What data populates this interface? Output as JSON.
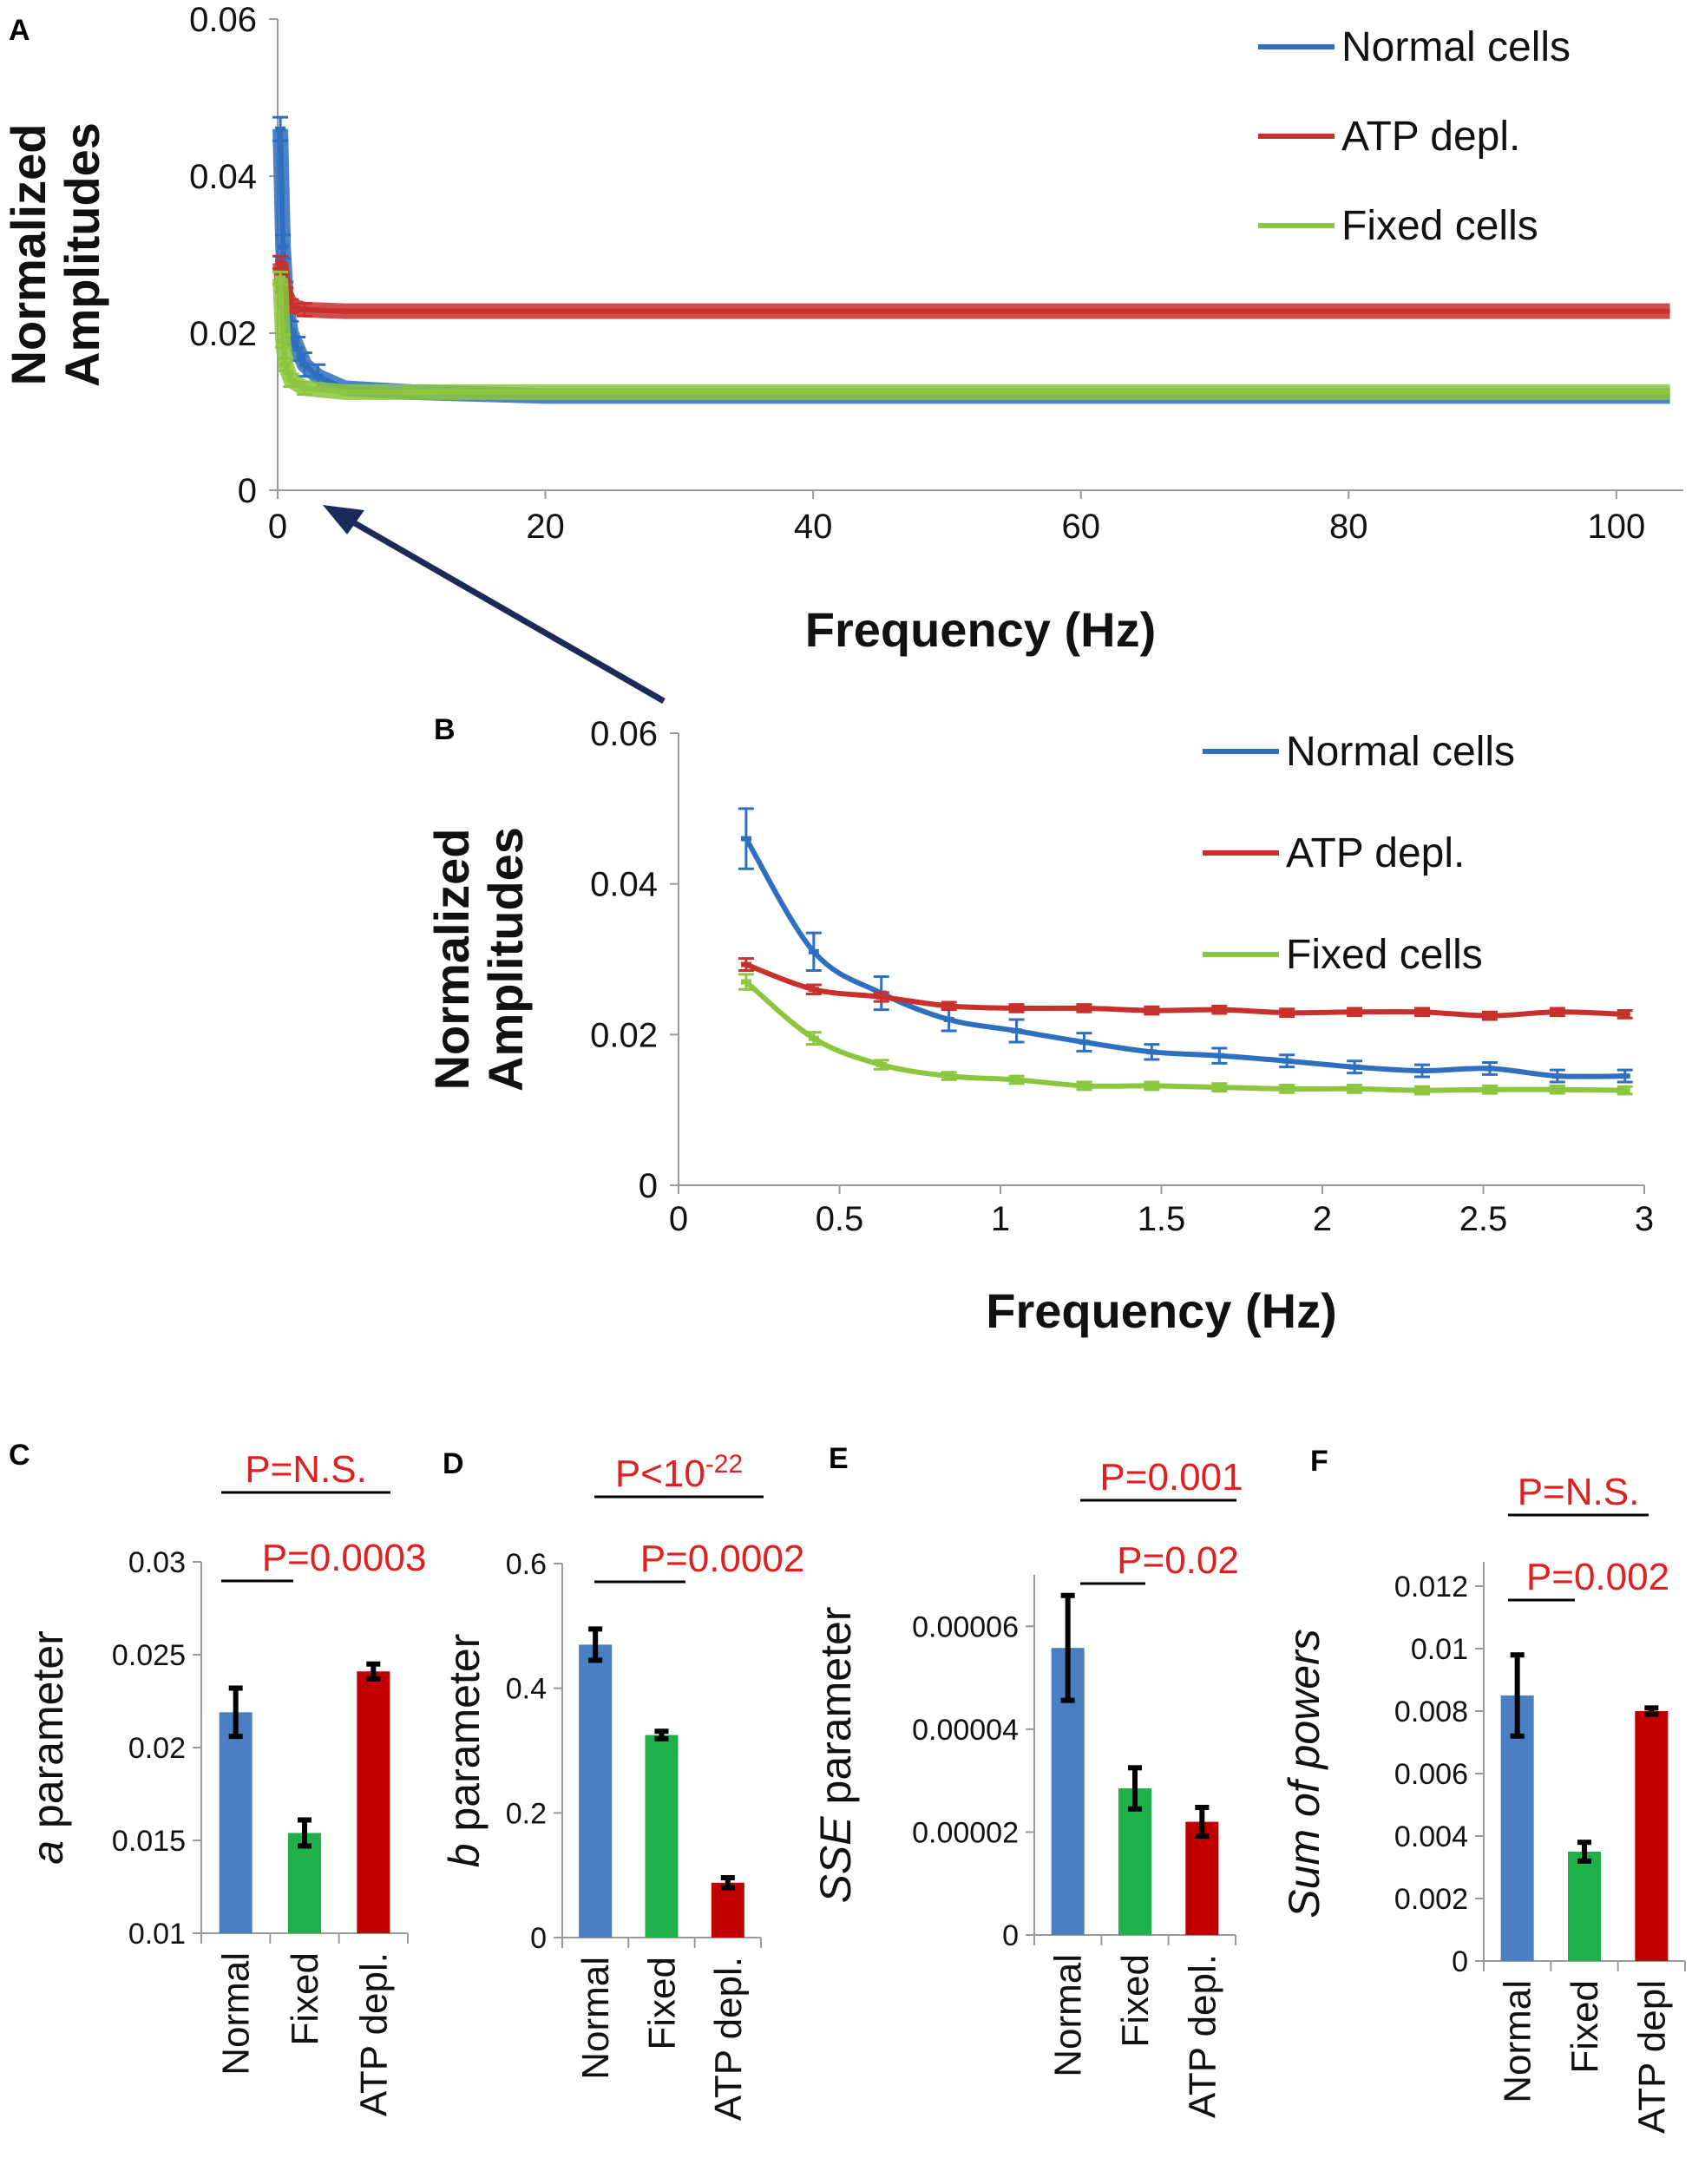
{
  "chart_data": [
    {
      "panel": "A",
      "type": "line",
      "xlabel": "Frequency (Hz)",
      "ylabel_lines": [
        "Normalized",
        "Amplitudes"
      ],
      "xlim": [
        0,
        105
      ],
      "ylim": [
        0,
        0.06
      ],
      "xticks": [
        0,
        20,
        40,
        60,
        80,
        100
      ],
      "xtick_labels": [
        "0",
        "20",
        "40",
        "60",
        "80",
        "100"
      ],
      "yticks": [
        0,
        0.02,
        0.04,
        0.06
      ],
      "ytick_labels": [
        "0",
        "0.02",
        "0.04",
        "0.06"
      ],
      "legend_position": "top-right",
      "series": [
        {
          "name": "Normal cells",
          "color": "#2e6fbf",
          "x": [
            0.2,
            0.4,
            0.6,
            0.8,
            1.0,
            1.5,
            2,
            3,
            5,
            10,
            20,
            40,
            60,
            80,
            104
          ],
          "y": [
            0.046,
            0.031,
            0.025,
            0.022,
            0.02,
            0.018,
            0.016,
            0.0145,
            0.013,
            0.0125,
            0.012,
            0.012,
            0.012,
            0.012,
            0.012
          ],
          "err": 0.0015
        },
        {
          "name": "ATP depl.",
          "color": "#c8302c",
          "x": [
            0.2,
            0.4,
            0.6,
            1,
            2,
            5,
            10,
            20,
            40,
            60,
            80,
            104
          ],
          "y": [
            0.029,
            0.026,
            0.025,
            0.0235,
            0.023,
            0.0228,
            0.0228,
            0.0228,
            0.0228,
            0.0228,
            0.0228,
            0.0228
          ],
          "err": 0.0008
        },
        {
          "name": "Fixed cells",
          "color": "#8cc63e",
          "x": [
            0.2,
            0.4,
            0.6,
            1,
            2,
            5,
            10,
            20,
            40,
            60,
            80,
            104
          ],
          "y": [
            0.027,
            0.019,
            0.016,
            0.014,
            0.013,
            0.0125,
            0.0125,
            0.0125,
            0.0125,
            0.0125,
            0.0125,
            0.0125
          ],
          "err": 0.0008
        }
      ]
    },
    {
      "panel": "B",
      "type": "line",
      "xlabel": "Frequency (Hz)",
      "ylabel_lines": [
        "Normalized",
        "Amplitudes"
      ],
      "xlim": [
        0,
        3
      ],
      "ylim": [
        0,
        0.06
      ],
      "xticks": [
        0,
        0.5,
        1,
        1.5,
        2,
        2.5,
        3
      ],
      "xtick_labels": [
        "0",
        "0.5",
        "1",
        "1.5",
        "2",
        "2.5",
        "3"
      ],
      "yticks": [
        0,
        0.02,
        0.04,
        0.06
      ],
      "ytick_labels": [
        "0",
        "0.02",
        "0.04",
        "0.06"
      ],
      "legend_position": "top-right",
      "x": [
        0.21,
        0.42,
        0.63,
        0.84,
        1.05,
        1.26,
        1.47,
        1.68,
        1.89,
        2.1,
        2.31,
        2.52,
        2.73,
        2.94
      ],
      "series": [
        {
          "name": "Normal cells",
          "color": "#2e6fbf",
          "y": [
            0.046,
            0.031,
            0.0255,
            0.022,
            0.0205,
            0.019,
            0.0177,
            0.0172,
            0.0165,
            0.0157,
            0.0152,
            0.0155,
            0.0145,
            0.0145
          ],
          "err": [
            0.004,
            0.0025,
            0.0022,
            0.0015,
            0.0015,
            0.0012,
            0.001,
            0.001,
            0.0008,
            0.0008,
            0.0008,
            0.0008,
            0.0008,
            0.0008
          ]
        },
        {
          "name": "ATP depl.",
          "color": "#c8302c",
          "y": [
            0.0293,
            0.026,
            0.025,
            0.0238,
            0.0235,
            0.0235,
            0.0232,
            0.0233,
            0.0229,
            0.023,
            0.023,
            0.0225,
            0.023,
            0.0227
          ],
          "err": [
            0.0008,
            0.0006,
            0.0006,
            0.0005,
            0.0005,
            0.0005,
            0.0005,
            0.0005,
            0.0005,
            0.0005,
            0.0005,
            0.0005,
            0.0005,
            0.0005
          ]
        },
        {
          "name": "Fixed cells",
          "color": "#8cc63e",
          "y": [
            0.027,
            0.0195,
            0.016,
            0.0145,
            0.014,
            0.0132,
            0.0132,
            0.013,
            0.0128,
            0.0128,
            0.0126,
            0.0127,
            0.0127,
            0.0126
          ],
          "err": [
            0.001,
            0.0008,
            0.0006,
            0.0005,
            0.0005,
            0.0005,
            0.0005,
            0.0005,
            0.0005,
            0.0005,
            0.0005,
            0.0005,
            0.0005,
            0.0005
          ]
        }
      ]
    },
    {
      "panel": "C",
      "type": "bar",
      "ylabel_italic": "a",
      "ylabel_rest": " parameter",
      "ylim": [
        0.01,
        0.03
      ],
      "yticks": [
        0.01,
        0.015,
        0.02,
        0.025,
        0.03
      ],
      "ytick_labels": [
        "0.01",
        "0.015",
        "0.02",
        "0.025",
        "0.03"
      ],
      "categories": [
        "Normal",
        "Fixed",
        "ATP depl."
      ],
      "values": [
        0.0219,
        0.0154,
        0.0241
      ],
      "errors": [
        0.0013,
        0.0007,
        0.0004
      ],
      "colors": [
        "#4a7fc4",
        "#1fb04a",
        "#c00000"
      ],
      "annotations": [
        {
          "text": "P=N.S.",
          "from": 0,
          "to": 2,
          "level": 1
        },
        {
          "text": "P=0.0003",
          "from": 0,
          "to": 1,
          "level": 0
        }
      ]
    },
    {
      "panel": "D",
      "type": "bar",
      "ylabel_italic": "b",
      "ylabel_rest": " parameter",
      "ylim": [
        0,
        0.6
      ],
      "yticks": [
        0,
        0.2,
        0.4,
        0.6
      ],
      "ytick_labels": [
        "0",
        "0.2",
        "0.4",
        "0.6"
      ],
      "categories": [
        "Normal",
        "Fixed",
        "ATP depl."
      ],
      "values": [
        0.47,
        0.325,
        0.088
      ],
      "errors": [
        0.025,
        0.006,
        0.008
      ],
      "colors": [
        "#4a7fc4",
        "#1fb04a",
        "#c00000"
      ],
      "annotations": [
        {
          "text": "P<10",
          "sup": "-22",
          "from": 0,
          "to": 2,
          "level": 1
        },
        {
          "text": "P=0.0002",
          "from": 0,
          "to": 1,
          "level": 0
        }
      ]
    },
    {
      "panel": "E",
      "type": "bar",
      "ylabel_italic": "SSE",
      "ylabel_rest": " parameter",
      "ylim": [
        0,
        7e-05
      ],
      "yticks": [
        0,
        2e-05,
        4e-05,
        6e-05
      ],
      "ytick_labels": [
        "0",
        "0.00002",
        "0.00004",
        "0.00006"
      ],
      "categories": [
        "Normal",
        "Fixed",
        "ATP depl."
      ],
      "values": [
        5.58e-05,
        2.85e-05,
        2.2e-05
      ],
      "errors": [
        1.02e-05,
        4e-06,
        2.8e-06
      ],
      "colors": [
        "#4a7fc4",
        "#1fb04a",
        "#c00000"
      ],
      "annotations": [
        {
          "text": "P=0.001",
          "from": 0,
          "to": 2,
          "level": 1
        },
        {
          "text": "P=0.02",
          "from": 0,
          "to": 1,
          "level": 0
        }
      ]
    },
    {
      "panel": "F",
      "type": "bar",
      "ylabel_italic": "Sum of powers",
      "ylabel_rest": "",
      "ylim": [
        0,
        0.012
      ],
      "yticks": [
        0,
        0.002,
        0.004,
        0.006,
        0.008,
        0.01,
        0.012
      ],
      "ytick_labels": [
        "0",
        "0.002",
        "0.004",
        "0.006",
        "0.008",
        "0.01",
        "0.012"
      ],
      "categories": [
        "Normal",
        "Fixed",
        "ATP depl"
      ],
      "values": [
        0.0085,
        0.0035,
        0.008
      ],
      "errors": [
        0.0013,
        0.0003,
        0.0001
      ],
      "colors": [
        "#4a7fc4",
        "#1fb04a",
        "#c00000"
      ],
      "annotations": [
        {
          "text": "P=N.S.",
          "from": 0,
          "to": 2,
          "level": 1
        },
        {
          "text": "P=0.002",
          "from": 0,
          "to": 1,
          "level": 0
        }
      ]
    }
  ]
}
